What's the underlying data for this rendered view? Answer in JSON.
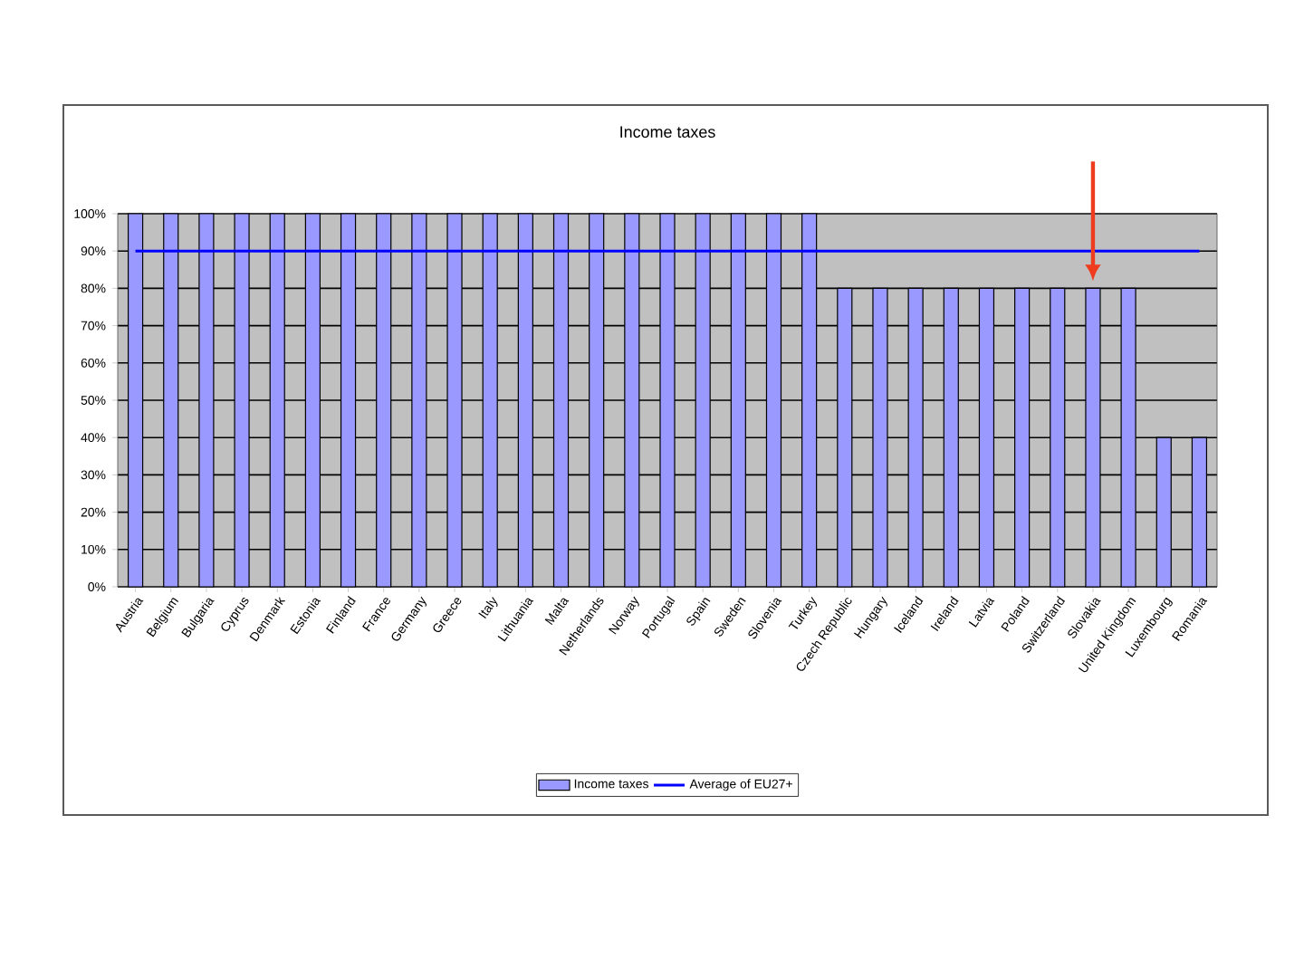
{
  "chart_data": {
    "type": "bar",
    "title": "Income taxes",
    "categories": [
      "Austria",
      "Belgium",
      "Bulgaria",
      "Cyprus",
      "Denmark",
      "Estonia",
      "Finland",
      "France",
      "Germany",
      "Greece",
      "Italy",
      "Lithuania",
      "Malta",
      "Netherlands",
      "Norway",
      "Portugal",
      "Spain",
      "Sweden",
      "Slovenia",
      "Turkey",
      "Czech Republic",
      "Hungary",
      "Iceland",
      "Ireland",
      "Latvia",
      "Poland",
      "Switzerland",
      "Slovakia",
      "United Kingdom",
      "Luxembourg",
      "Romania"
    ],
    "series": [
      {
        "name": "Income taxes",
        "color": "#9999ff",
        "values": [
          100,
          100,
          100,
          100,
          100,
          100,
          100,
          100,
          100,
          100,
          100,
          100,
          100,
          100,
          100,
          100,
          100,
          100,
          100,
          100,
          80,
          80,
          80,
          80,
          80,
          80,
          80,
          80,
          80,
          40,
          40
        ]
      },
      {
        "name": "Average of EU27+",
        "type": "line",
        "color": "#0000ff",
        "values": [
          90,
          90,
          90,
          90,
          90,
          90,
          90,
          90,
          90,
          90,
          90,
          90,
          90,
          90,
          90,
          90,
          90,
          90,
          90,
          90,
          90,
          90,
          90,
          90,
          90,
          90,
          90,
          90,
          90,
          90,
          90
        ]
      }
    ],
    "ylim": [
      0,
      100
    ],
    "yticks": [
      {
        "value": 0,
        "label": "0%"
      },
      {
        "value": 10,
        "label": "10%"
      },
      {
        "value": 20,
        "label": "20%"
      },
      {
        "value": 30,
        "label": "30%"
      },
      {
        "value": 40,
        "label": "40%"
      },
      {
        "value": 50,
        "label": "50%"
      },
      {
        "value": 60,
        "label": "60%"
      },
      {
        "value": 70,
        "label": "70%"
      },
      {
        "value": 80,
        "label": "80%"
      },
      {
        "value": 90,
        "label": "90%"
      },
      {
        "value": 100,
        "label": "100%"
      }
    ],
    "grid": "y",
    "legend": "bottom",
    "marker": "none"
  }
}
